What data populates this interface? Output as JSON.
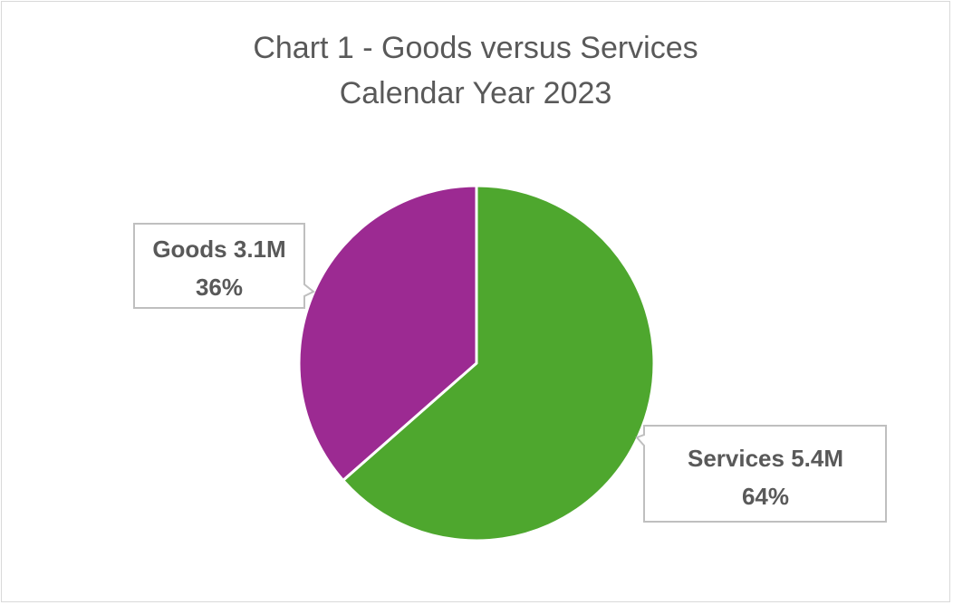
{
  "chart_data": {
    "type": "pie",
    "title": "Chart 1 - Goods versus Services",
    "subtitle": "Calendar Year 2023",
    "slices": [
      {
        "name": "Goods",
        "label": "Goods 3.1M",
        "value": 3.1,
        "percent": 36,
        "percent_label": "36%",
        "color": "#9c2a92"
      },
      {
        "name": "Services",
        "label": "Services 5.4M",
        "value": 5.4,
        "percent": 64,
        "percent_label": "64%",
        "color": "#4ea72e"
      }
    ],
    "legend": "none",
    "label_style": "callout"
  }
}
